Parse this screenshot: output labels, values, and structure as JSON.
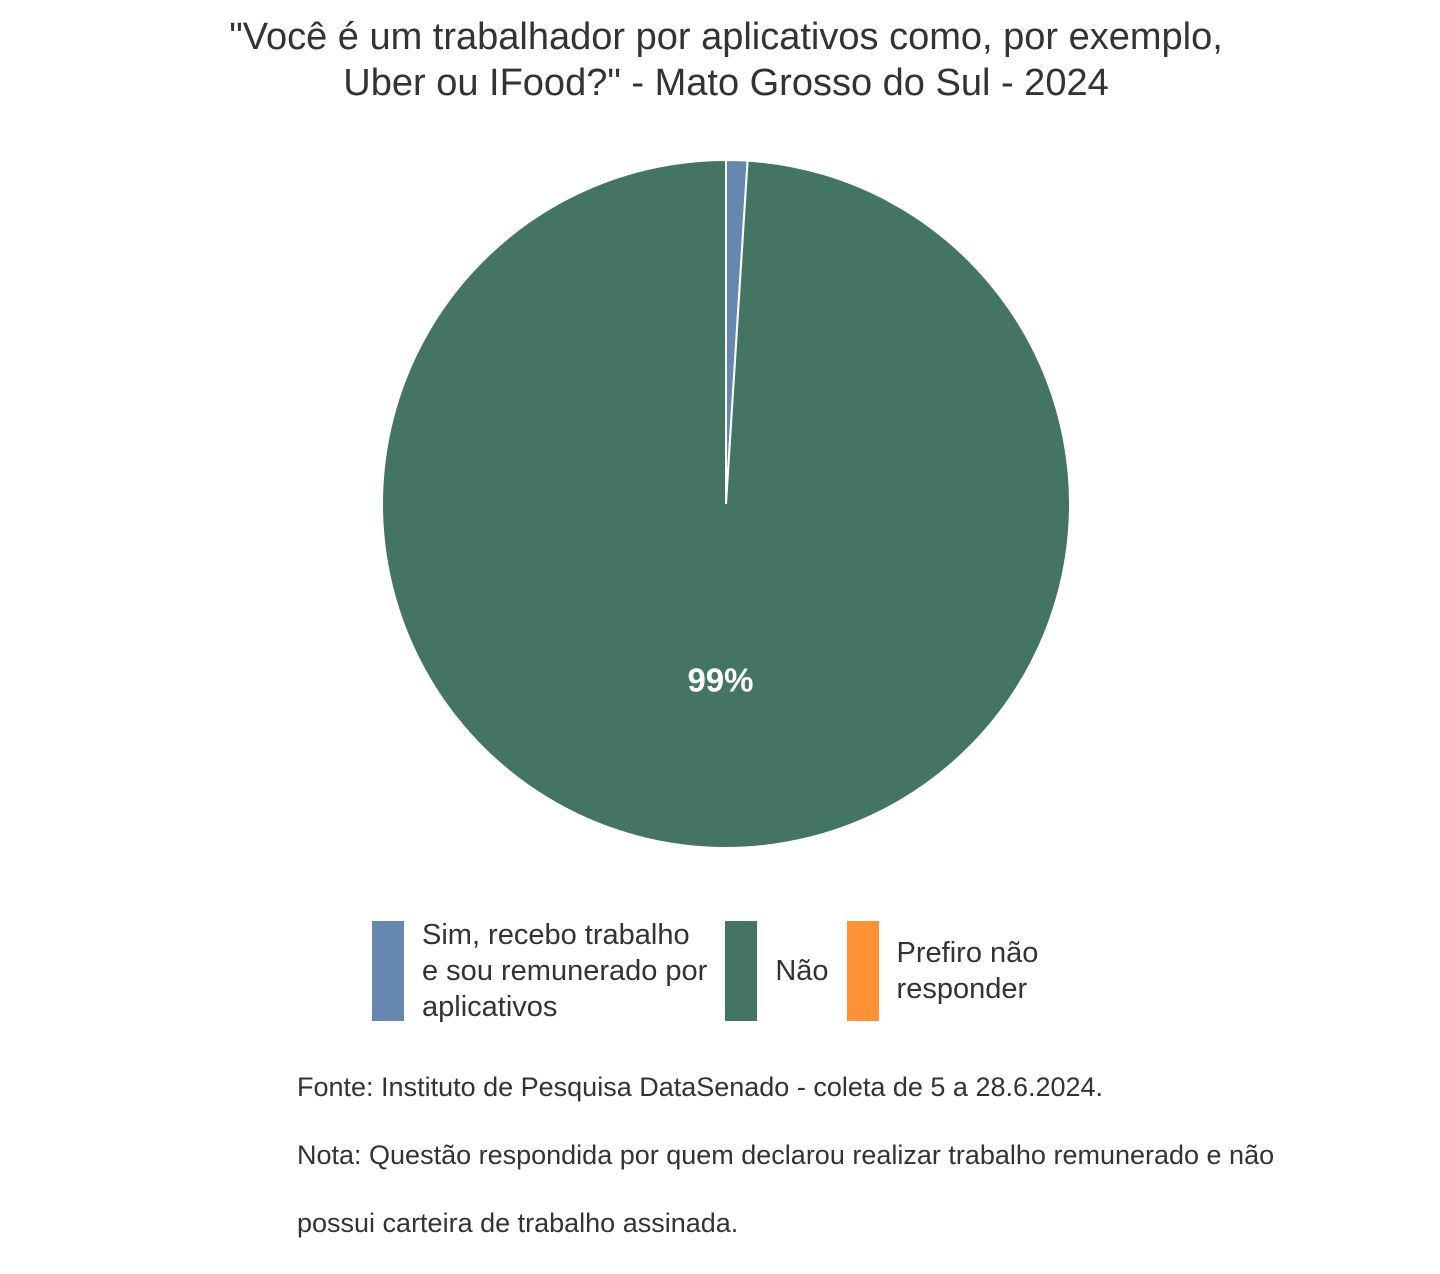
{
  "chart_data": {
    "type": "pie",
    "title_lines": [
      "\"Você é um trabalhador por aplicativos como, por exemplo,",
      "Uber ou IFood?\" - Mato Grosso do Sul - 2024"
    ],
    "categories": [
      "Sim, recebo trabalho e sou remunerado por aplicativos",
      "Não",
      "Prefiro não responder"
    ],
    "values": [
      1,
      99,
      0
    ],
    "data_labels": [
      "",
      "99%",
      ""
    ],
    "colors": [
      "#6688b0",
      "#447563",
      "#fd9236"
    ],
    "legend": {
      "placement": "bottom",
      "items": [
        {
          "label": "Sim, recebo trabalho\ne sou remunerado por\naplicativos",
          "color": "#6688b0"
        },
        {
          "label": "Não",
          "color": "#447563"
        },
        {
          "label": "Prefiro não\nresponder",
          "color": "#fd9236"
        }
      ]
    },
    "caption_lines": [
      "Fonte: Instituto de Pesquisa DataSenado - coleta de 5 a 28.6.2024.",
      "Nota: Questão respondida por quem declarou realizar trabalho remunerado e não",
      "possui carteira de trabalho assinada."
    ]
  }
}
